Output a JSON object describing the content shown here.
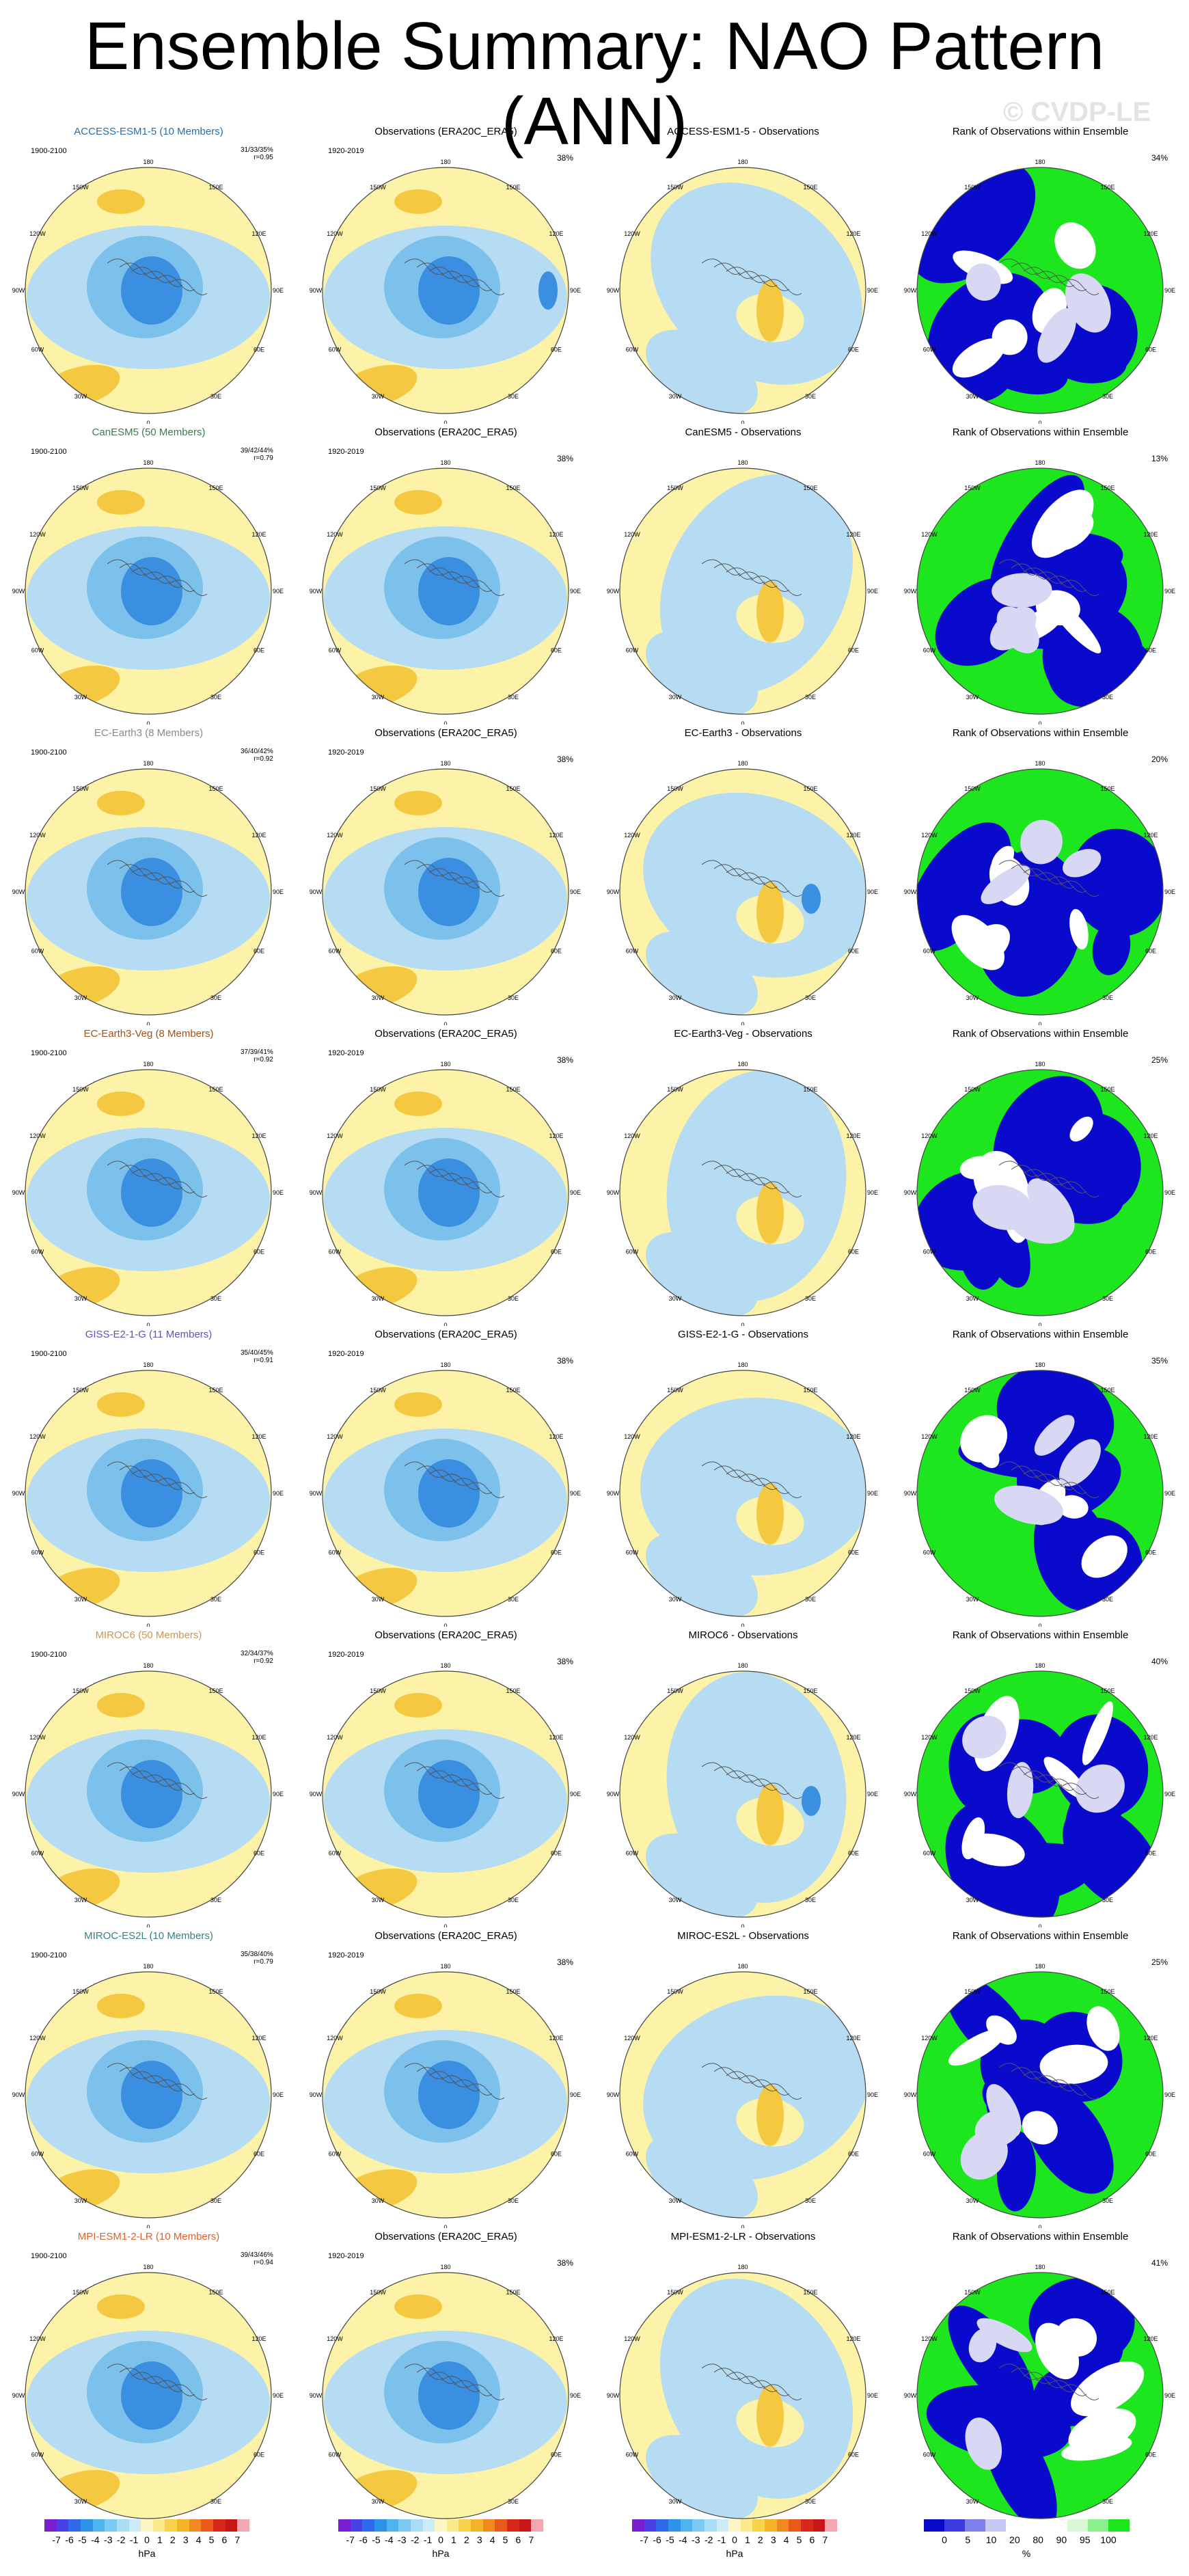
{
  "title": "Ensemble Summary: NAO Pattern (ANN)",
  "watermark": "© CVDP-LE",
  "rows": [
    {
      "model": "ACCESS-ESM1-5 (10 Members)",
      "color": "#2c6fa3",
      "years": "1900-2100",
      "stats": [
        "31/33/35%",
        "r=0.95"
      ],
      "diff_title": "ACCESS-ESM1-5 - Observations",
      "rank_pct": "34%",
      "obs_pct": "38%"
    },
    {
      "model": "CanESM5 (50 Members)",
      "color": "#3d7a4f",
      "years": "1900-2100",
      "stats": [
        "39/42/44%",
        "r=0.79"
      ],
      "diff_title": "CanESM5 - Observations",
      "rank_pct": "13%",
      "obs_pct": "38%"
    },
    {
      "model": "EC-Earth3 (8 Members)",
      "color": "#8a8a8a",
      "years": "1900-2100",
      "stats": [
        "36/40/42%",
        "r=0.92"
      ],
      "diff_title": "EC-Earth3 - Observations",
      "rank_pct": "20%",
      "obs_pct": "38%"
    },
    {
      "model": "EC-Earth3-Veg (8 Members)",
      "color": "#a0521b",
      "years": "1900-2100",
      "stats": [
        "37/39/41%",
        "r=0.92"
      ],
      "diff_title": "EC-Earth3-Veg - Observations",
      "rank_pct": "25%",
      "obs_pct": "38%"
    },
    {
      "model": "GISS-E2-1-G (11 Members)",
      "color": "#6a4fb0",
      "years": "1900-2100",
      "stats": [
        "35/40/45%",
        "r=0.91"
      ],
      "diff_title": "GISS-E2-1-G - Observations",
      "rank_pct": "35%",
      "obs_pct": "38%"
    },
    {
      "model": "MIROC6 (50 Members)",
      "color": "#c9975a",
      "years": "1900-2100",
      "stats": [
        "32/34/37%",
        "r=0.92"
      ],
      "diff_title": "MIROC6 - Observations",
      "rank_pct": "40%",
      "obs_pct": "38%"
    },
    {
      "model": "MIROC-ES2L (10 Members)",
      "color": "#3a7f85",
      "years": "1900-2100",
      "stats": [
        "35/38/40%",
        "r=0.79"
      ],
      "diff_title": "MIROC-ES2L - Observations",
      "rank_pct": "25%",
      "obs_pct": "38%"
    },
    {
      "model": "MPI-ESM1-2-LR (10 Members)",
      "color": "#e0602a",
      "years": "1900-2100",
      "stats": [
        "39/43/46%",
        "r=0.94"
      ],
      "diff_title": "MPI-ESM1-2-LR - Observations",
      "rank_pct": "41%",
      "obs_pct": "38%"
    }
  ],
  "obs_title": "Observations (ERA20C_ERA5)",
  "obs_years": "1920-2019",
  "rank_title": "Rank of Observations within Ensemble",
  "map_labels": [
    "180",
    "150W",
    "150E",
    "120W",
    "120E",
    "90W",
    "90E",
    "60W",
    "60E",
    "30W",
    "30E",
    "0"
  ],
  "colors": {
    "pos_light": "#fdf3a8",
    "neg_light": "#b5dcf3",
    "neg_mid": "#7cc0ec",
    "neg_dark": "#3b8fe0",
    "pos_mid": "#f5c842",
    "green": "#1ee61e",
    "blue": "#0a0acd",
    "lavender": "#d8d8f5"
  },
  "colorbar_hpa": {
    "colors": [
      "#7a1fd0",
      "#4b3fe6",
      "#2f6be8",
      "#2b93e8",
      "#4fb3ef",
      "#7ccaf2",
      "#a9ddf5",
      "#cdebf7",
      "#fbf6c4",
      "#fbe98a",
      "#f8d24a",
      "#f5b32a",
      "#f08a20",
      "#e85a1a",
      "#d8281a",
      "#c81515",
      "#f2a8b0"
    ],
    "ticks": [
      "-7",
      "-6",
      "-5",
      "-4",
      "-3",
      "-2",
      "-1",
      "0",
      "1",
      "2",
      "3",
      "4",
      "5",
      "6",
      "7"
    ],
    "unit": "hPa"
  },
  "colorbar_rank": {
    "colors": [
      "#0a0acd",
      "#3b3be0",
      "#8080ec",
      "#c8c8f4",
      "#ffffff",
      "#ffffff",
      "#ffffff",
      "#d8f8d8",
      "#8cf08c",
      "#1ee61e"
    ],
    "ticks": [
      "0",
      "5",
      "10",
      "20",
      "80",
      "90",
      "95",
      "100"
    ],
    "unit": "%"
  }
}
